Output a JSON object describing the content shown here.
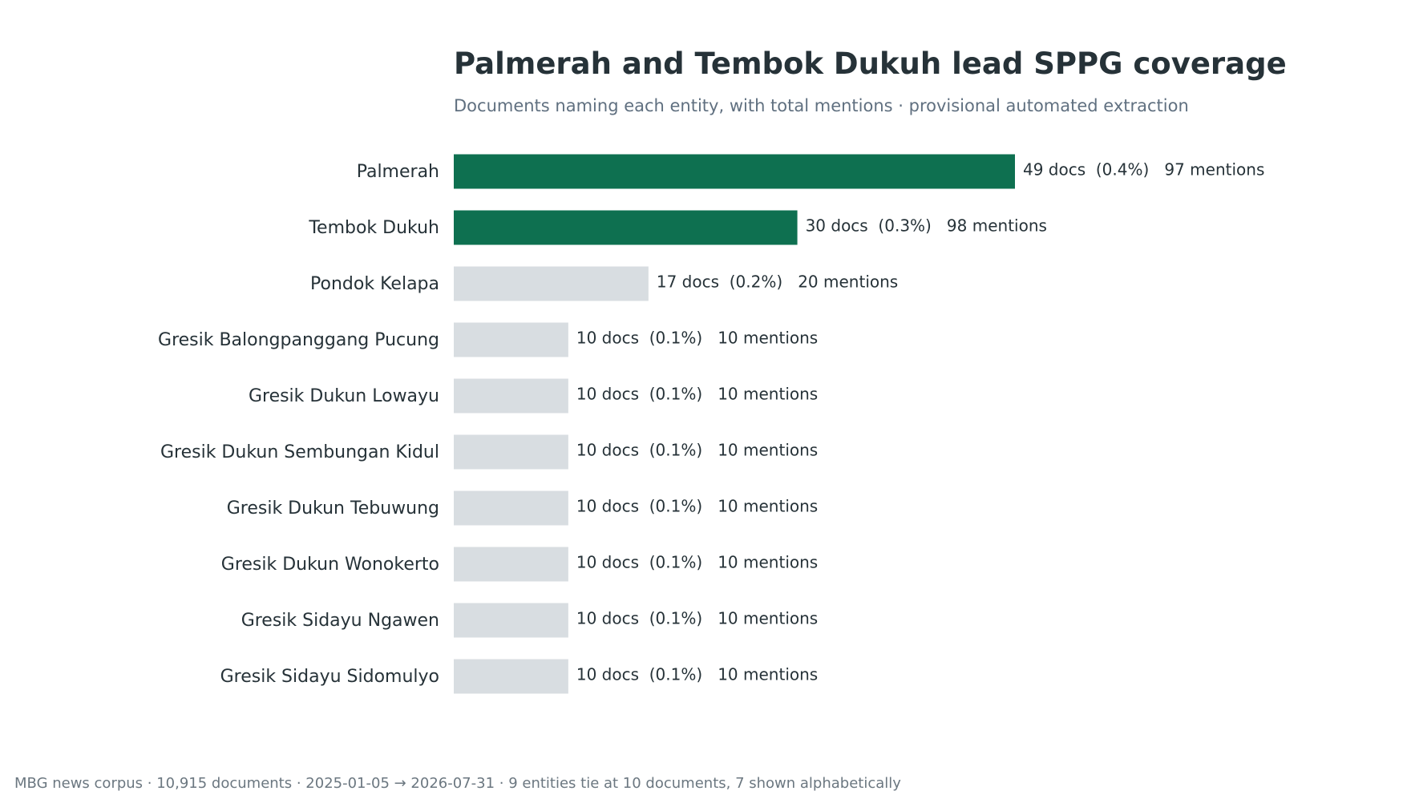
{
  "chart_data": {
    "type": "bar",
    "orientation": "horizontal",
    "title": "Palmerah and Tembok Dukuh lead SPPG coverage",
    "subtitle": "Documents naming each entity, with total mentions · provisional automated extraction",
    "footer": "MBG news corpus · 10,915 documents · 2025-01-05 → 2026-07-31 · 9 entities tie at 10 documents, 7 shown alphabetically",
    "categories": [
      "Palmerah",
      "Tembok Dukuh",
      "Pondok Kelapa",
      "Gresik Balongpanggang Pucung",
      "Gresik Dukun Lowayu",
      "Gresik Dukun Sembungan Kidul",
      "Gresik Dukun Tebuwung",
      "Gresik Dukun Wonokerto",
      "Gresik Sidayu Ngawen",
      "Gresik Sidayu Sidomulyo"
    ],
    "series": [
      {
        "values": [
          49,
          30,
          17,
          10,
          10,
          10,
          10,
          10,
          10,
          10
        ]
      }
    ],
    "value_labels": [
      "49 docs  (0.4%)   97 mentions",
      "30 docs  (0.3%)   98 mentions",
      "17 docs  (0.2%)   20 mentions",
      "10 docs  (0.1%)   10 mentions",
      "10 docs  (0.1%)   10 mentions",
      "10 docs  (0.1%)   10 mentions",
      "10 docs  (0.1%)   10 mentions",
      "10 docs  (0.1%)   10 mentions",
      "10 docs  (0.1%)   10 mentions",
      "10 docs  (0.1%)   10 mentions"
    ],
    "highlighted": [
      true,
      true,
      false,
      false,
      false,
      false,
      false,
      false,
      false,
      false
    ],
    "colors": {
      "highlight": "#0e7050",
      "muted": "#d8dde1"
    },
    "xlim": [
      0,
      49
    ],
    "grid": false,
    "legend": "none"
  }
}
